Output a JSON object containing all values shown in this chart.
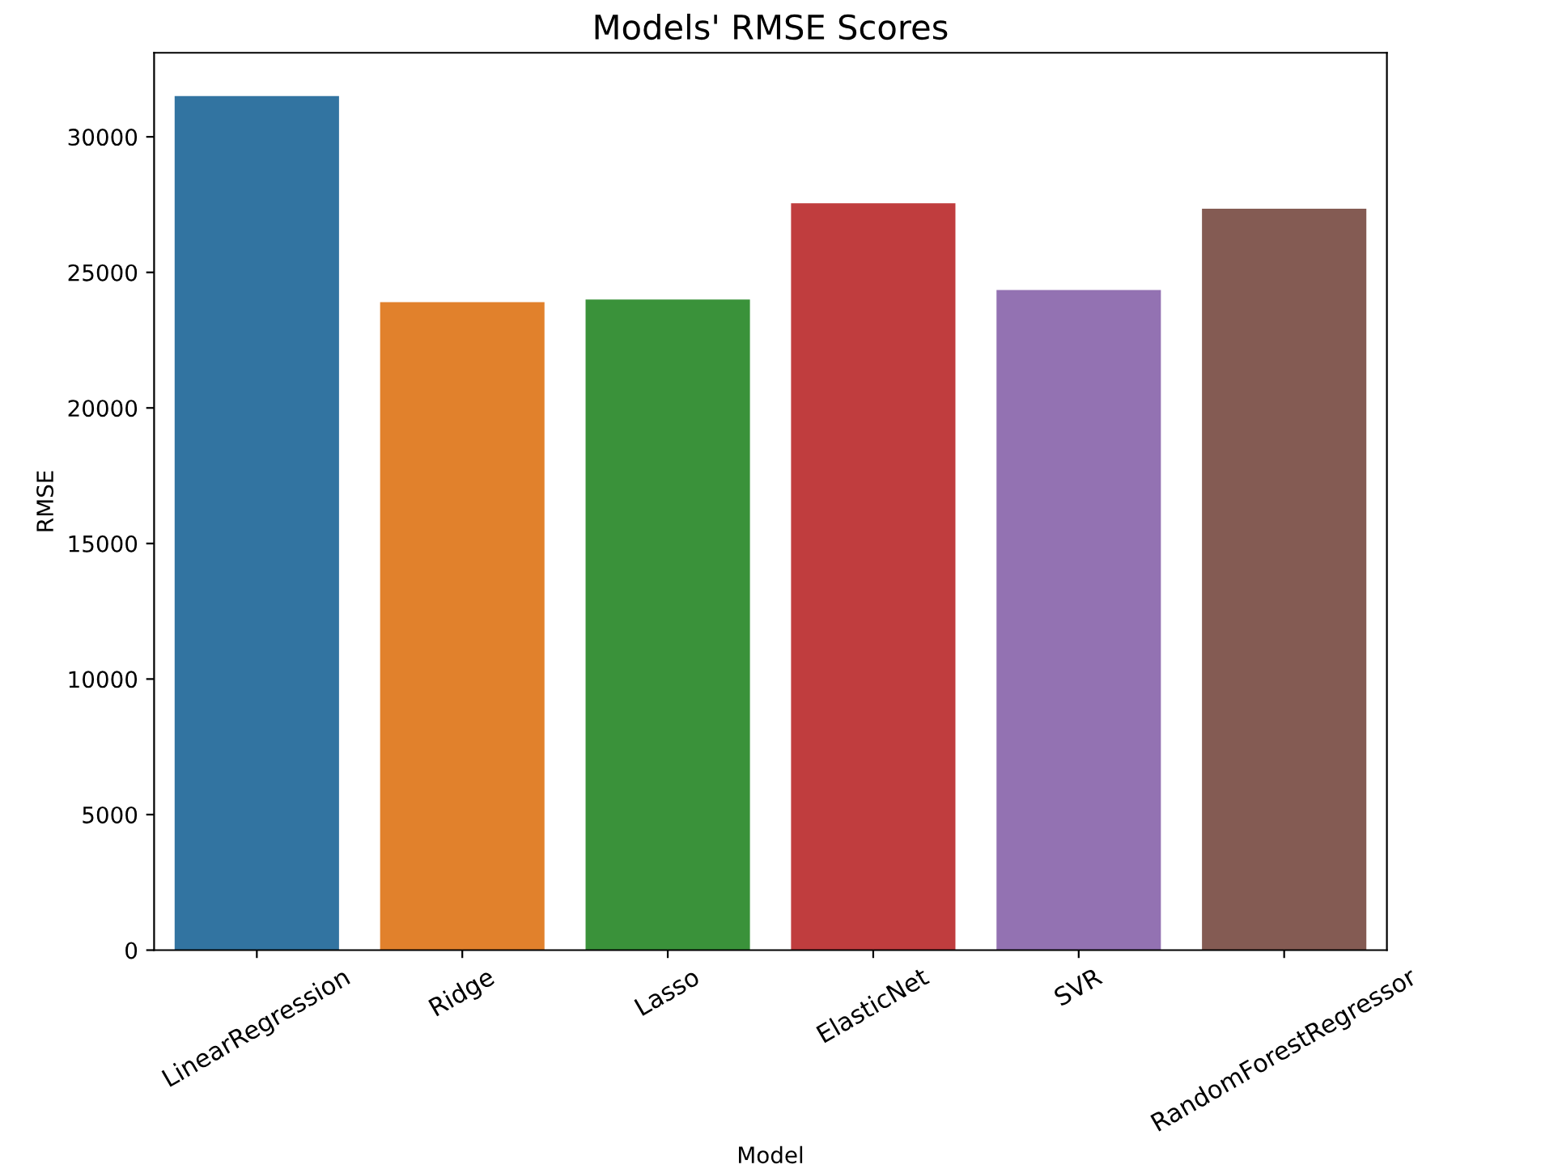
{
  "chart_data": {
    "type": "bar",
    "title": "Models' RMSE Scores",
    "xlabel": "Model",
    "ylabel": "RMSE",
    "categories": [
      "LinearRegression",
      "Ridge",
      "Lasso",
      "ElasticNet",
      "SVR",
      "RandomForestRegressor"
    ],
    "values": [
      31500,
      23900,
      24000,
      27550,
      24350,
      27350
    ],
    "colors": [
      "#3274a1",
      "#e1812c",
      "#3a923a",
      "#c03d3e",
      "#9372b2",
      "#845b53"
    ],
    "ylim": [
      0,
      33100
    ],
    "yticks": [
      0,
      5000,
      10000,
      15000,
      20000,
      25000,
      30000
    ],
    "grid": false
  }
}
